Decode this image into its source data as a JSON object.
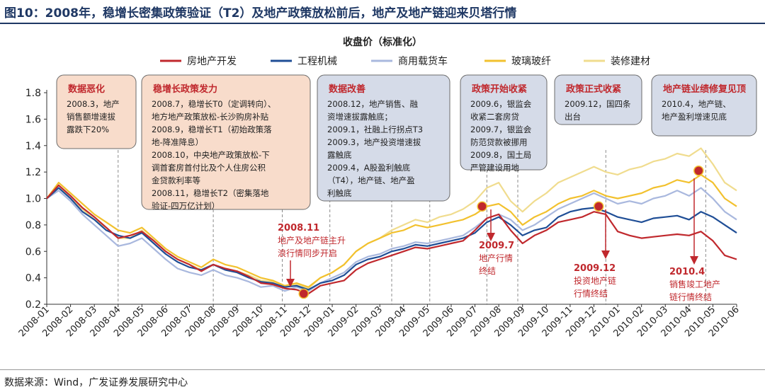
{
  "header": {
    "figure_title": "图10：2008年，稳增长密集政策验证（T2）及地产政策放松前后，地产及地产链迎来贝塔行情"
  },
  "footer": {
    "source": "数据来源：Wind，广发证券发展研究中心"
  },
  "colors": {
    "title_blue": "#1f3864",
    "callout_orange_fill": "#f8dccb",
    "callout_blue_fill": "#d5dbe8",
    "annotation_red": "#c0282d"
  },
  "chart_data": {
    "type": "line",
    "title": "收盘价（标准化）",
    "xlabel": "",
    "ylabel": "",
    "ylim": [
      0.2,
      1.8
    ],
    "yticks": [
      "0.2",
      "0.4",
      "0.6",
      "0.8",
      "1.0",
      "1.2",
      "1.4",
      "1.6",
      "1.8"
    ],
    "grid": false,
    "legend_position": "top",
    "x_tick_labels": [
      "2008-01",
      "2008-02",
      "2008-03",
      "2008-04",
      "2008-05",
      "2008-06",
      "2008-07",
      "2008-08",
      "2008-09",
      "2008-10",
      "2008-11",
      "2008-12",
      "2009-01",
      "2009-02",
      "2009-03",
      "2009-04",
      "2009-05",
      "2009-06",
      "2009-07",
      "2009-08",
      "2009-09",
      "2009-10",
      "2009-11",
      "2009-12",
      "2010-01",
      "2010-02",
      "2010-03",
      "2010-04",
      "2010-05",
      "2010-06"
    ],
    "x_months": [
      0,
      0.5,
      1,
      1.5,
      2,
      2.5,
      3,
      3.5,
      4,
      4.5,
      5,
      5.5,
      6,
      6.5,
      7,
      7.5,
      8,
      8.5,
      9,
      9.5,
      10,
      10.5,
      11,
      11.5,
      12,
      12.5,
      13,
      13.5,
      14,
      14.5,
      15,
      15.5,
      16,
      16.5,
      17,
      17.5,
      18,
      18.5,
      19,
      19.5,
      20,
      20.5,
      21,
      21.5,
      22,
      22.5,
      23,
      23.5,
      24,
      24.5,
      25,
      25.5,
      26,
      26.5,
      27,
      27.5,
      28,
      28.5,
      29
    ],
    "series": [
      {
        "name": "房地产开发",
        "color": "#c0282d",
        "values": [
          1.0,
          1.1,
          1.02,
          0.93,
          0.86,
          0.78,
          0.7,
          0.72,
          0.75,
          0.68,
          0.6,
          0.54,
          0.5,
          0.45,
          0.5,
          0.47,
          0.45,
          0.41,
          0.36,
          0.35,
          0.32,
          0.31,
          0.28,
          0.34,
          0.36,
          0.38,
          0.46,
          0.51,
          0.54,
          0.57,
          0.6,
          0.63,
          0.62,
          0.64,
          0.66,
          0.68,
          0.76,
          0.85,
          0.88,
          0.76,
          0.66,
          0.72,
          0.76,
          0.82,
          0.84,
          0.86,
          0.9,
          0.88,
          0.75,
          0.72,
          0.7,
          0.71,
          0.72,
          0.73,
          0.72,
          0.75,
          0.68,
          0.57,
          0.54
        ]
      },
      {
        "name": "工程机械",
        "color": "#1f4e96",
        "values": [
          1.0,
          1.08,
          1.0,
          0.9,
          0.84,
          0.76,
          0.72,
          0.7,
          0.74,
          0.66,
          0.58,
          0.52,
          0.48,
          0.46,
          0.5,
          0.46,
          0.44,
          0.4,
          0.37,
          0.36,
          0.33,
          0.34,
          0.31,
          0.36,
          0.38,
          0.42,
          0.5,
          0.54,
          0.56,
          0.6,
          0.62,
          0.65,
          0.64,
          0.66,
          0.68,
          0.7,
          0.74,
          0.82,
          0.86,
          0.8,
          0.72,
          0.76,
          0.78,
          0.86,
          0.9,
          0.92,
          0.93,
          0.9,
          0.86,
          0.84,
          0.82,
          0.85,
          0.86,
          0.87,
          0.84,
          0.9,
          0.86,
          0.8,
          0.74
        ]
      },
      {
        "name": "商用载货车",
        "color": "#a9b8de",
        "values": [
          1.0,
          1.06,
          0.98,
          0.88,
          0.8,
          0.72,
          0.64,
          0.66,
          0.7,
          0.62,
          0.54,
          0.47,
          0.44,
          0.42,
          0.46,
          0.42,
          0.4,
          0.37,
          0.33,
          0.34,
          0.3,
          0.33,
          0.3,
          0.36,
          0.4,
          0.44,
          0.52,
          0.56,
          0.58,
          0.62,
          0.64,
          0.67,
          0.66,
          0.68,
          0.7,
          0.72,
          0.78,
          0.85,
          0.88,
          0.84,
          0.76,
          0.8,
          0.86,
          0.92,
          0.96,
          1.0,
          1.04,
          1.0,
          0.96,
          0.98,
          0.96,
          1.0,
          1.02,
          1.06,
          1.02,
          1.08,
          1.0,
          0.9,
          0.84
        ]
      },
      {
        "name": "玻璃玻纤",
        "color": "#f2c12e",
        "values": [
          1.0,
          1.12,
          1.04,
          0.96,
          0.88,
          0.82,
          0.76,
          0.74,
          0.78,
          0.7,
          0.62,
          0.56,
          0.52,
          0.48,
          0.54,
          0.5,
          0.48,
          0.44,
          0.4,
          0.38,
          0.34,
          0.36,
          0.33,
          0.4,
          0.44,
          0.5,
          0.6,
          0.66,
          0.7,
          0.74,
          0.76,
          0.8,
          0.78,
          0.8,
          0.82,
          0.84,
          0.88,
          0.94,
          0.96,
          0.9,
          0.8,
          0.86,
          0.9,
          0.96,
          1.0,
          1.02,
          1.06,
          1.02,
          1.0,
          1.02,
          1.04,
          1.08,
          1.1,
          1.14,
          1.12,
          1.18,
          1.12,
          1.0,
          0.94
        ]
      },
      {
        "name": "装修建材",
        "color": "#f0dc8e",
        "values": [
          1.0,
          1.1,
          1.0,
          0.92,
          0.84,
          0.78,
          0.7,
          0.7,
          0.76,
          0.68,
          0.6,
          0.54,
          0.5,
          0.46,
          0.5,
          0.47,
          0.45,
          0.42,
          0.38,
          0.37,
          0.34,
          0.35,
          0.32,
          0.4,
          0.44,
          0.5,
          0.6,
          0.66,
          0.7,
          0.76,
          0.8,
          0.84,
          0.82,
          0.86,
          0.88,
          0.92,
          0.98,
          1.08,
          1.12,
          0.98,
          0.9,
          0.98,
          1.04,
          1.12,
          1.16,
          1.2,
          1.24,
          1.2,
          1.18,
          1.22,
          1.24,
          1.28,
          1.3,
          1.34,
          1.32,
          1.38,
          1.26,
          1.12,
          1.06
        ]
      }
    ],
    "callouts": [
      {
        "title": "数据恶化",
        "style": "orange",
        "anchor_month": 2.2,
        "lines": [
          "2008.3，地产",
          "销售额增速拔",
          "露跌下20%"
        ]
      },
      {
        "title": "稳增长政策发力",
        "style": "orange",
        "anchor_month": 7,
        "lines": [
          "2008.7，稳增长T0（定调转向）、",
          "地方地产政策放松-长沙购房补贴",
          "2008.9，稳增长T1（初始政策落",
          "地-降准降息）",
          "2008.10，中央地产政策放松-下",
          "调首套房首付比及个人住房公积",
          "金贷款利率等",
          "2008.11，稳增长T2（密集落地",
          "验证-四万亿计划）"
        ]
      },
      {
        "title": "数据改善",
        "style": "blue",
        "anchor_month": 13,
        "lines": [
          "2008.12，地产销售、融",
          "资增速拔露触底；",
          "2009.1，社融上行拐点T3",
          "2009.3，地产投资增速拔",
          "露触底",
          "2009.4，A股盈利触底",
          "（T4），地产链、地产盈",
          "利触底"
        ]
      },
      {
        "title": "政策开始收紧",
        "style": "blue",
        "anchor_month": 18.5,
        "lines": [
          "2009.6，银监会",
          "收紧二套房贷",
          "2009.7，银监会",
          "防范贷款被挪用",
          "2009.8，国土局",
          "严管建设用地"
        ]
      },
      {
        "title": "政策正式收紧",
        "style": "blue",
        "anchor_month": 23,
        "lines": [
          "2009.12，国四条",
          "出台"
        ]
      },
      {
        "title": "地产链业绩修复见顶",
        "style": "blue",
        "anchor_month": 27,
        "lines": [
          "2010.4，地产链、",
          "地产盈利增速见底"
        ]
      }
    ],
    "events": [
      {
        "month": 10.8,
        "value": 0.28,
        "lines": [
          "2008.11",
          "地产及地产链主升",
          "浪行情同步开启"
        ]
      },
      {
        "month": 18.3,
        "value": 0.94,
        "lines": [
          "2009.7",
          "地产行情",
          "终结"
        ]
      },
      {
        "month": 23.2,
        "value": 0.94,
        "lines": [
          "2009.12",
          "投资地产链",
          "行情终结"
        ]
      },
      {
        "month": 27.4,
        "value": 1.21,
        "lines": [
          "2010.4",
          "销售竣工地产",
          "链行情终结"
        ]
      }
    ]
  }
}
